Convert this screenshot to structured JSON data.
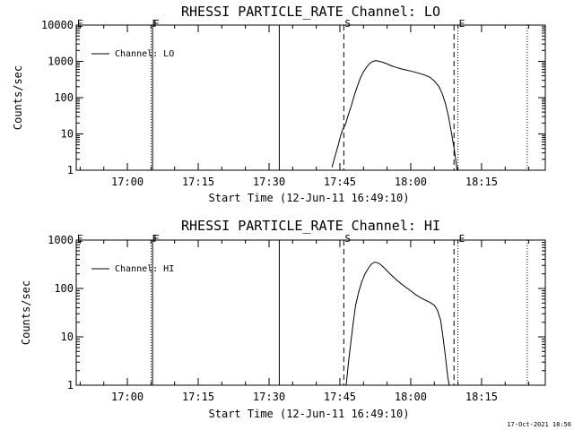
{
  "chart_data": [
    {
      "type": "line",
      "title": "RHESSI PARTICLE_RATE Channel: LO",
      "xlabel": "Start Time (12-Jun-11 16:49:10)",
      "ylabel": "Counts/sec",
      "xlim": [
        "16:49:10",
        "18:28:30"
      ],
      "ylim": [
        1,
        10000
      ],
      "yscale": "log",
      "xticks": [
        "17:00",
        "17:15",
        "17:30",
        "17:45",
        "18:00",
        "18:15"
      ],
      "yticks": [
        "1",
        "10",
        "100",
        "1000",
        "10000"
      ],
      "legend": {
        "label": "Channel: LO",
        "position": "top-left"
      },
      "grid": false,
      "markers": [
        {
          "label": "E",
          "time": "16:49:10",
          "style": "dotted"
        },
        {
          "label": "F",
          "time": "17:05:00",
          "style": "dotted"
        },
        {
          "label": "F",
          "time": "17:05:20",
          "style": "solid"
        },
        {
          "label": "",
          "time": "17:32:10",
          "style": "solid"
        },
        {
          "label": "S",
          "time": "17:45:50",
          "style": "dashed"
        },
        {
          "label": "",
          "time": "18:09:10",
          "style": "dashed"
        },
        {
          "label": "E",
          "time": "18:10:00",
          "style": "dotted"
        },
        {
          "label": "",
          "time": "18:24:40",
          "style": "dotted"
        }
      ],
      "series": [
        {
          "name": "Channel: LO",
          "x": [
            "17:43:20",
            "17:44:00",
            "17:44:40",
            "17:45:10",
            "17:45:40",
            "17:46:10",
            "17:46:40",
            "17:47:20",
            "17:48:00",
            "17:48:40",
            "17:49:20",
            "17:50:00",
            "17:50:40",
            "17:51:20",
            "17:52:00",
            "17:52:40",
            "17:53:20",
            "17:54:00",
            "17:55:00",
            "17:56:00",
            "17:57:00",
            "17:58:00",
            "17:59:00",
            "18:00:00",
            "18:01:00",
            "18:02:00",
            "18:03:00",
            "18:04:00",
            "18:05:00",
            "18:06:00",
            "18:06:40",
            "18:07:20",
            "18:08:00",
            "18:08:40",
            "18:09:20",
            "18:09:50"
          ],
          "y": [
            1.2,
            2.5,
            5,
            9,
            14,
            18,
            30,
            55,
            110,
            200,
            350,
            520,
            700,
            880,
            1000,
            1050,
            1000,
            950,
            850,
            750,
            680,
            620,
            580,
            540,
            500,
            460,
            420,
            370,
            290,
            200,
            130,
            70,
            30,
            10,
            3,
            1
          ]
        }
      ]
    },
    {
      "type": "line",
      "title": "RHESSI PARTICLE_RATE Channel: HI",
      "xlabel": "Start Time (12-Jun-11 16:49:10)",
      "ylabel": "Counts/sec",
      "xlim": [
        "16:49:10",
        "18:28:30"
      ],
      "ylim": [
        1,
        1000
      ],
      "yscale": "log",
      "xticks": [
        "17:00",
        "17:15",
        "17:30",
        "17:45",
        "18:00",
        "18:15"
      ],
      "yticks": [
        "1",
        "10",
        "100",
        "1000"
      ],
      "legend": {
        "label": "Channel: HI",
        "position": "top-left"
      },
      "grid": false,
      "markers": [
        {
          "label": "E",
          "time": "16:49:10",
          "style": "dotted"
        },
        {
          "label": "F",
          "time": "17:05:00",
          "style": "dotted"
        },
        {
          "label": "F",
          "time": "17:05:20",
          "style": "solid"
        },
        {
          "label": "",
          "time": "17:32:10",
          "style": "solid"
        },
        {
          "label": "S",
          "time": "17:45:50",
          "style": "dashed"
        },
        {
          "label": "",
          "time": "18:09:10",
          "style": "dashed"
        },
        {
          "label": "E",
          "time": "18:10:00",
          "style": "dotted"
        },
        {
          "label": "",
          "time": "18:24:40",
          "style": "dotted"
        }
      ],
      "series": [
        {
          "name": "Channel: HI",
          "x": [
            "17:46:20",
            "17:46:50",
            "17:47:20",
            "17:47:50",
            "17:48:20",
            "17:49:00",
            "17:49:40",
            "17:50:20",
            "17:51:00",
            "17:51:40",
            "17:52:20",
            "17:53:00",
            "17:53:40",
            "17:54:20",
            "17:55:00",
            "17:56:00",
            "17:57:00",
            "17:58:00",
            "17:59:00",
            "18:00:00",
            "18:01:00",
            "18:02:00",
            "18:03:00",
            "18:04:00",
            "18:05:00",
            "18:05:40",
            "18:06:20",
            "18:06:50",
            "18:07:20",
            "18:07:50",
            "18:08:10"
          ],
          "y": [
            1,
            3,
            8,
            20,
            45,
            85,
            140,
            200,
            260,
            320,
            350,
            340,
            310,
            270,
            230,
            185,
            150,
            125,
            105,
            90,
            75,
            65,
            58,
            52,
            45,
            35,
            22,
            10,
            4,
            1.5,
            1
          ]
        }
      ]
    }
  ],
  "footer": {
    "timestamp": "17-Oct-2021 18:56"
  }
}
